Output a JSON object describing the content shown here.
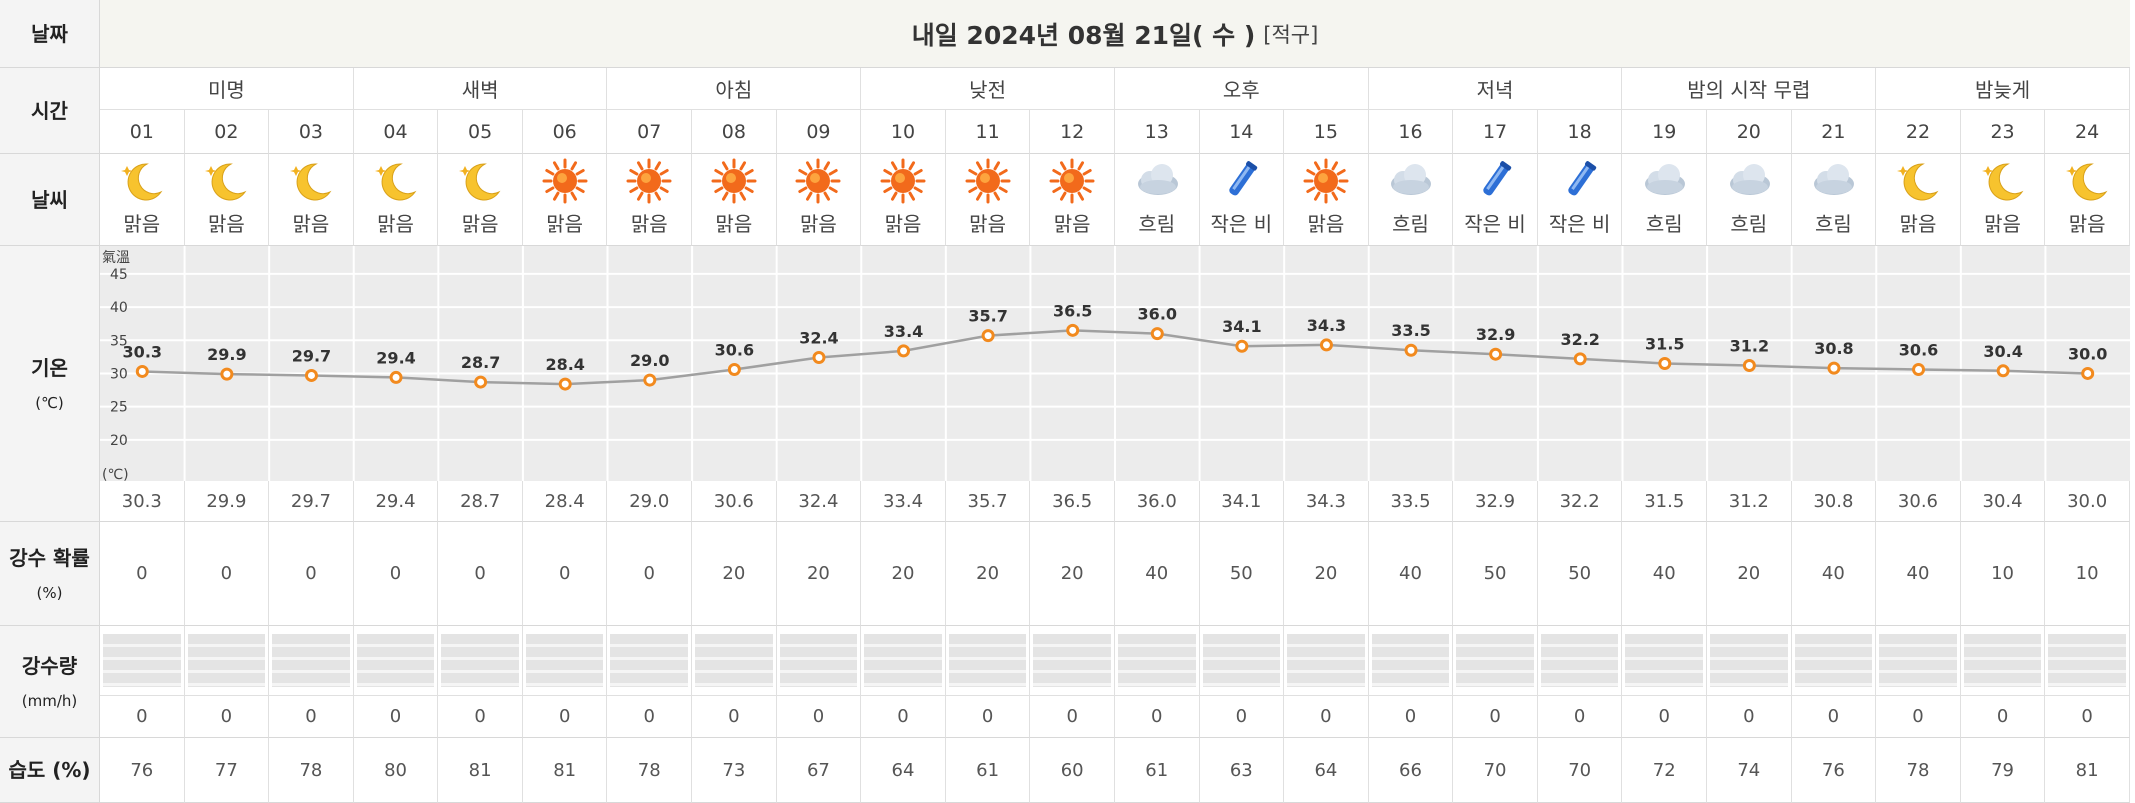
{
  "header": {
    "date_label": "날짜",
    "title": "내일 2024년 08월 21일( 수 )",
    "region": "[적구]"
  },
  "row_labels": {
    "time": "시간",
    "weather": "날씨",
    "temperature": "기온",
    "temperature_unit": "(℃)",
    "precip_prob": "강수 확률",
    "precip_prob_unit": "(%)",
    "precip_amount": "강수량",
    "precip_amount_unit": "(mm/h)",
    "humidity": "습도 (%)"
  },
  "periods": [
    "미명",
    "새벽",
    "아침",
    "낮전",
    "오후",
    "저녁",
    "밤의 시작 무렵",
    "밤늦게"
  ],
  "hours": [
    "01",
    "02",
    "03",
    "04",
    "05",
    "06",
    "07",
    "08",
    "09",
    "10",
    "11",
    "12",
    "13",
    "14",
    "15",
    "16",
    "17",
    "18",
    "19",
    "20",
    "21",
    "22",
    "23",
    "24"
  ],
  "weather": [
    {
      "icon": "moon-icon",
      "label": "맑음"
    },
    {
      "icon": "moon-icon",
      "label": "맑음"
    },
    {
      "icon": "moon-icon",
      "label": "맑음"
    },
    {
      "icon": "moon-icon",
      "label": "맑음"
    },
    {
      "icon": "moon-icon",
      "label": "맑음"
    },
    {
      "icon": "sun-icon",
      "label": "맑음"
    },
    {
      "icon": "sun-icon",
      "label": "맑음"
    },
    {
      "icon": "sun-icon",
      "label": "맑음"
    },
    {
      "icon": "sun-icon",
      "label": "맑음"
    },
    {
      "icon": "sun-icon",
      "label": "맑음"
    },
    {
      "icon": "sun-icon",
      "label": "맑음"
    },
    {
      "icon": "sun-icon",
      "label": "맑음"
    },
    {
      "icon": "cloud-icon",
      "label": "흐림"
    },
    {
      "icon": "umbrella-icon",
      "label": "작은 비"
    },
    {
      "icon": "sun-icon",
      "label": "맑음"
    },
    {
      "icon": "cloud-icon",
      "label": "흐림"
    },
    {
      "icon": "umbrella-icon",
      "label": "작은 비"
    },
    {
      "icon": "umbrella-icon",
      "label": "작은 비"
    },
    {
      "icon": "cloud-icon",
      "label": "흐림"
    },
    {
      "icon": "cloud-icon",
      "label": "흐림"
    },
    {
      "icon": "cloud-icon",
      "label": "흐림"
    },
    {
      "icon": "moon-icon",
      "label": "맑음"
    },
    {
      "icon": "moon-icon",
      "label": "맑음"
    },
    {
      "icon": "moon-icon",
      "label": "맑음"
    }
  ],
  "temperature_text": [
    "30.3",
    "29.9",
    "29.7",
    "29.4",
    "28.7",
    "28.4",
    "29.0",
    "30.6",
    "32.4",
    "33.4",
    "35.7",
    "36.5",
    "36.0",
    "34.1",
    "34.3",
    "33.5",
    "32.9",
    "32.2",
    "31.5",
    "31.2",
    "30.8",
    "30.6",
    "30.4",
    "30.0"
  ],
  "precip_prob": [
    "0",
    "0",
    "0",
    "0",
    "0",
    "0",
    "0",
    "20",
    "20",
    "20",
    "20",
    "20",
    "40",
    "50",
    "20",
    "40",
    "50",
    "50",
    "40",
    "20",
    "40",
    "40",
    "10",
    "10"
  ],
  "precip_amount": [
    "0",
    "0",
    "0",
    "0",
    "0",
    "0",
    "0",
    "0",
    "0",
    "0",
    "0",
    "0",
    "0",
    "0",
    "0",
    "0",
    "0",
    "0",
    "0",
    "0",
    "0",
    "0",
    "0",
    "0"
  ],
  "humidity": [
    "76",
    "77",
    "78",
    "80",
    "81",
    "81",
    "78",
    "73",
    "67",
    "64",
    "61",
    "60",
    "61",
    "63",
    "64",
    "66",
    "70",
    "70",
    "72",
    "74",
    "76",
    "78",
    "79",
    "81"
  ],
  "chart_data": {
    "type": "line",
    "title": "氣溫",
    "ylabel": "(℃)",
    "x": [
      "01",
      "02",
      "03",
      "04",
      "05",
      "06",
      "07",
      "08",
      "09",
      "10",
      "11",
      "12",
      "13",
      "14",
      "15",
      "16",
      "17",
      "18",
      "19",
      "20",
      "21",
      "22",
      "23",
      "24"
    ],
    "series": [
      {
        "values": [
          30.3,
          29.9,
          29.7,
          29.4,
          28.7,
          28.4,
          29.0,
          30.6,
          32.4,
          33.4,
          35.7,
          36.5,
          36.0,
          34.1,
          34.3,
          33.5,
          32.9,
          32.2,
          31.5,
          31.2,
          30.8,
          30.6,
          30.4,
          30.0
        ]
      }
    ],
    "y_ticks": [
      45,
      40,
      35,
      30,
      25,
      20
    ],
    "ylim": [
      15,
      48
    ],
    "line_color": "#a0a0a0",
    "marker_color": "#f28a1e",
    "grid": true
  },
  "colors": {
    "sun": "#f26a1b",
    "sun_glow": "#ffb347",
    "moon": "#f7c32e",
    "cloud": "#b9c7d6",
    "umbrella": "#2d6fd6"
  }
}
